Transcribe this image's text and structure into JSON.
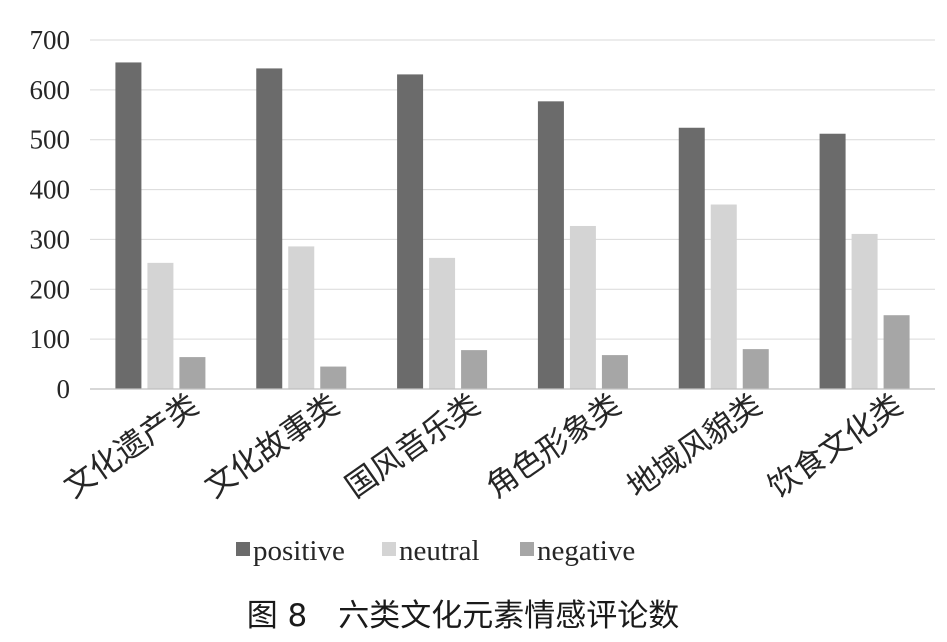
{
  "chart_data": {
    "type": "bar",
    "categories": [
      "文化遗产类",
      "文化故事类",
      "国风音乐类",
      "角色形象类",
      "地域风貌类",
      "饮食文化类"
    ],
    "series": [
      {
        "name": "positive",
        "color": "#6b6b6b",
        "values": [
          655,
          643,
          631,
          577,
          524,
          512
        ]
      },
      {
        "name": "neutral",
        "color": "#d4d4d4",
        "values": [
          253,
          286,
          263,
          327,
          370,
          311
        ]
      },
      {
        "name": "negative",
        "color": "#a6a6a6",
        "values": [
          64,
          45,
          78,
          68,
          80,
          148
        ]
      }
    ],
    "yticks": [
      "0",
      "100",
      "200",
      "300",
      "400",
      "500",
      "600",
      "700"
    ],
    "ylim": [
      0,
      700
    ],
    "grid": true,
    "legend_position": "bottom",
    "caption": "图 8　六类文化元素情感评论数"
  }
}
